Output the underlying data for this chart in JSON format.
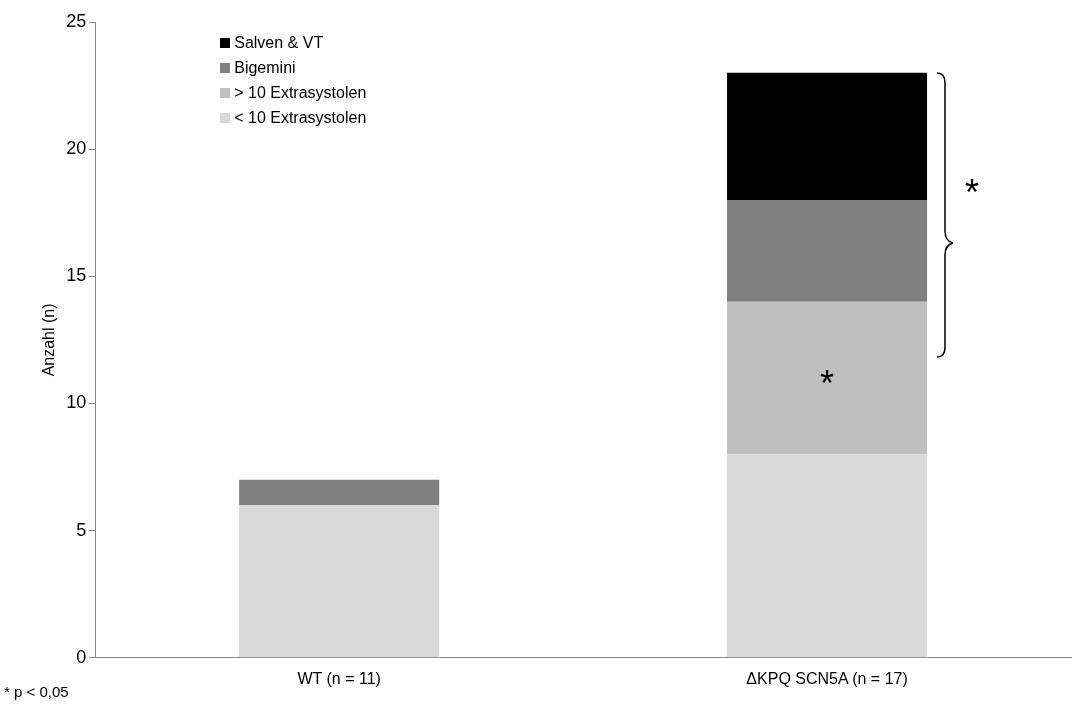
{
  "chart_data": {
    "type": "bar",
    "stacked": true,
    "ylabel": "Anzahl (n)",
    "categories": [
      "WT (n = 11)",
      "ΔKPQ SCN5A (n = 17)"
    ],
    "series": [
      {
        "name": "< 10 Extrasystolen",
        "color": "#d9d9d9",
        "values": [
          6,
          8
        ]
      },
      {
        "name": "> 10 Extrasystolen",
        "color": "#bfbfbf",
        "values": [
          0,
          6
        ]
      },
      {
        "name": "Bigemini",
        "color": "#808080",
        "values": [
          1,
          4
        ]
      },
      {
        "name": "Salven & VT",
        "color": "#000000",
        "values": [
          0,
          5
        ]
      }
    ],
    "ylim": [
      0,
      25
    ],
    "yticks": [
      0,
      5,
      10,
      15,
      20,
      25
    ],
    "grid": false,
    "legend": "top left",
    "annotations": [
      "*",
      "*",
      "* p < 0,05"
    ]
  }
}
